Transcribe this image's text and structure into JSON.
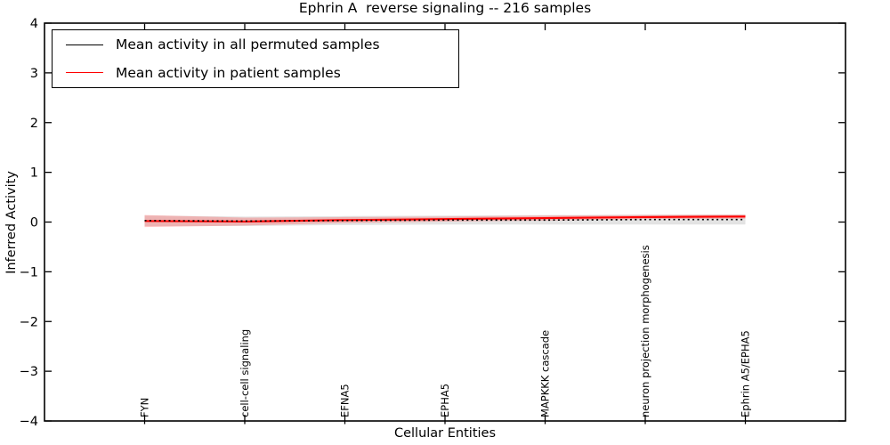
{
  "title": "Ephrin A  reverse signaling -- 216 samples",
  "axes": {
    "xlabel": "Cellular Entities",
    "ylabel": "Inferred Activity",
    "ytick_labels": [
      "4",
      "3",
      "2",
      "1",
      "0",
      "−1",
      "−2",
      "−3",
      "−4"
    ]
  },
  "legend": {
    "items": [
      {
        "label": "Mean activity in all permuted samples",
        "color": "#000000"
      },
      {
        "label": "Mean activity in patient samples",
        "color": "#ff0000"
      }
    ]
  },
  "chart_data": {
    "type": "line",
    "title": "Ephrin A  reverse signaling -- 216 samples",
    "xlabel": "Cellular Entities",
    "ylabel": "Inferred Activity",
    "xlim": [
      -1,
      7
    ],
    "ylim": [
      -4,
      4
    ],
    "yticks": [
      4,
      3,
      2,
      1,
      0,
      -1,
      -2,
      -3,
      -4
    ],
    "grid": false,
    "legend_position": "upper left",
    "categories": [
      "FYN",
      "cell-cell signaling",
      "EFNA5",
      "EPHA5",
      "MAPKKK cascade",
      "neuron projection morphogenesis",
      "Ephrin A5/EPHA5"
    ],
    "series": [
      {
        "name": "Mean activity in all permuted samples",
        "color": "#000000",
        "line_style": "dotted",
        "values": [
          0.03,
          0.02,
          0.03,
          0.04,
          0.04,
          0.05,
          0.05
        ],
        "band": {
          "color": "#c8c8c8",
          "upper": [
            0.13,
            0.11,
            0.12,
            0.13,
            0.14,
            0.15,
            0.15
          ],
          "lower": [
            -0.08,
            -0.08,
            -0.06,
            -0.05,
            -0.05,
            -0.05,
            -0.05
          ]
        }
      },
      {
        "name": "Mean activity in patient samples",
        "color": "#ff0000",
        "line_style": "solid",
        "values": [
          0.02,
          0.01,
          0.04,
          0.06,
          0.08,
          0.1,
          0.11
        ],
        "band": {
          "color": "#ff6666",
          "upper": [
            0.14,
            0.09,
            0.1,
            0.11,
            0.13,
            0.14,
            0.15
          ],
          "lower": [
            -0.1,
            -0.07,
            -0.02,
            0.01,
            0.03,
            0.06,
            0.07
          ]
        }
      }
    ]
  }
}
